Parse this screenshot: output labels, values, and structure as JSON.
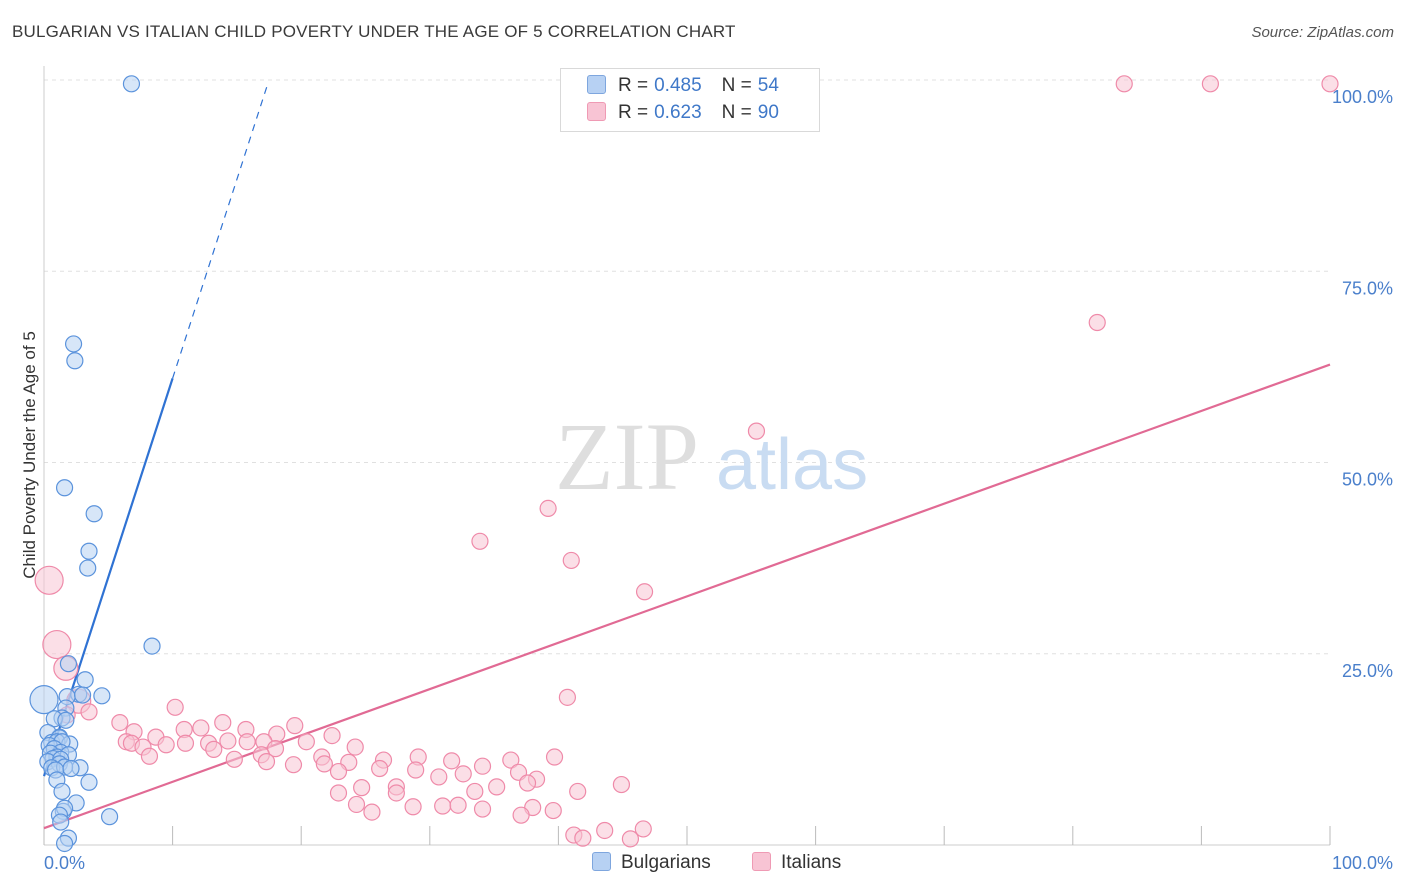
{
  "title": "BULGARIAN VS ITALIAN CHILD POVERTY UNDER THE AGE OF 5 CORRELATION CHART",
  "source": "Source: ZipAtlas.com",
  "watermark": {
    "zip": "ZIP",
    "atlas": "atlas"
  },
  "legend": {
    "rows": [
      {
        "r_label": "R =",
        "r_value": "0.485",
        "n_label": "N =",
        "n_value": "54",
        "fill": "#b7d1f3",
        "stroke": "#7ea6de"
      },
      {
        "r_label": "R =",
        "r_value": "0.623",
        "n_label": "N =",
        "n_value": "90",
        "fill": "#f8c4d4",
        "stroke": "#ef9ab4"
      }
    ]
  },
  "bottom_legend": {
    "bulgarians": "Bulgarians",
    "italians": "Italians"
  },
  "colors": {
    "blue_fill": "#b7d1f3",
    "blue_stroke": "#5b93dc",
    "blue_line": "#2f72d3",
    "pink_fill": "#f8c4d4",
    "pink_stroke": "#ef8aa9",
    "pink_line": "#e16a94",
    "tick_label": "#4a7fcb",
    "grid": "#e0e0e0"
  },
  "chart_data": {
    "type": "scatter",
    "title": "BULGARIAN VS ITALIAN CHILD POVERTY UNDER THE AGE OF 5 CORRELATION CHART",
    "xlabel": "",
    "ylabel": "Child Poverty Under the Age of 5",
    "xlim": [
      0,
      100
    ],
    "ylim": [
      0,
      100
    ],
    "x_tick_labels": [
      "0.0%",
      "100.0%"
    ],
    "y_ticks": [
      25,
      50,
      75,
      100
    ],
    "y_tick_labels": [
      "25.0%",
      "50.0%",
      "75.0%",
      "100.0%"
    ],
    "series": [
      {
        "name": "Bulgarians",
        "R": 0.485,
        "N": 54,
        "points": [
          [
            6.8,
            99.5
          ],
          [
            2.3,
            65.5
          ],
          [
            2.4,
            63.3
          ],
          [
            1.6,
            46.7
          ],
          [
            3.9,
            43.3
          ],
          [
            3.5,
            38.4
          ],
          [
            3.4,
            36.2
          ],
          [
            8.4,
            26.0
          ],
          [
            1.9,
            23.7
          ],
          [
            3.2,
            21.6
          ],
          [
            2.7,
            19.7
          ],
          [
            4.5,
            19.5
          ],
          [
            1.8,
            19.4
          ],
          [
            3.0,
            19.6
          ],
          [
            1.7,
            17.9
          ],
          [
            0.0,
            19.0
          ],
          [
            1.4,
            16.6
          ],
          [
            0.8,
            16.5
          ],
          [
            1.7,
            16.3
          ],
          [
            1.2,
            14.1
          ],
          [
            0.3,
            14.7
          ],
          [
            1.2,
            14.0
          ],
          [
            0.6,
            13.4
          ],
          [
            1.0,
            13.5
          ],
          [
            2.0,
            13.2
          ],
          [
            1.4,
            13.5
          ],
          [
            0.4,
            13.0
          ],
          [
            0.8,
            12.6
          ],
          [
            1.3,
            12.1
          ],
          [
            0.5,
            12.0
          ],
          [
            1.0,
            11.5
          ],
          [
            1.9,
            11.8
          ],
          [
            0.7,
            11.3
          ],
          [
            0.3,
            10.9
          ],
          [
            1.3,
            11.2
          ],
          [
            1.2,
            10.6
          ],
          [
            2.8,
            10.1
          ],
          [
            0.6,
            10.1
          ],
          [
            1.6,
            10.2
          ],
          [
            0.9,
            9.8
          ],
          [
            2.1,
            10.0
          ],
          [
            1.0,
            8.5
          ],
          [
            3.5,
            8.2
          ],
          [
            1.4,
            7.0
          ],
          [
            2.5,
            5.5
          ],
          [
            1.5,
            4.4
          ],
          [
            1.6,
            4.8
          ],
          [
            1.2,
            3.9
          ],
          [
            5.1,
            3.7
          ],
          [
            1.3,
            3.0
          ],
          [
            1.9,
            0.9
          ],
          [
            1.6,
            0.2
          ]
        ],
        "trend": {
          "x0": 0.0,
          "y0": 9.0,
          "x1": 10.0,
          "y1": 61.0,
          "dash_x1": 17.4,
          "dash_y1": 99.5
        }
      },
      {
        "name": "Italians",
        "R": 0.623,
        "N": 90,
        "points": [
          [
            84.0,
            99.5
          ],
          [
            90.7,
            99.5
          ],
          [
            100.0,
            99.5
          ],
          [
            81.9,
            68.3
          ],
          [
            55.4,
            54.1
          ],
          [
            39.2,
            44.0
          ],
          [
            33.9,
            39.7
          ],
          [
            41.0,
            37.2
          ],
          [
            46.7,
            33.1
          ],
          [
            0.4,
            34.6
          ],
          [
            1.0,
            26.2
          ],
          [
            1.7,
            23.1
          ],
          [
            40.7,
            19.3
          ],
          [
            2.7,
            18.8
          ],
          [
            10.2,
            18.0
          ],
          [
            3.5,
            17.4
          ],
          [
            1.8,
            17.0
          ],
          [
            5.9,
            16.0
          ],
          [
            13.9,
            16.0
          ],
          [
            19.5,
            15.6
          ],
          [
            10.9,
            15.1
          ],
          [
            12.2,
            15.3
          ],
          [
            15.7,
            15.1
          ],
          [
            7.0,
            14.8
          ],
          [
            22.4,
            14.3
          ],
          [
            18.1,
            14.5
          ],
          [
            6.4,
            13.5
          ],
          [
            8.7,
            14.1
          ],
          [
            11.0,
            13.3
          ],
          [
            12.8,
            13.3
          ],
          [
            14.3,
            13.6
          ],
          [
            15.8,
            13.5
          ],
          [
            9.5,
            13.1
          ],
          [
            6.8,
            13.3
          ],
          [
            7.7,
            12.8
          ],
          [
            17.1,
            13.5
          ],
          [
            13.2,
            12.5
          ],
          [
            20.4,
            13.5
          ],
          [
            18.0,
            12.6
          ],
          [
            24.2,
            12.8
          ],
          [
            16.9,
            11.8
          ],
          [
            21.6,
            11.5
          ],
          [
            8.2,
            11.6
          ],
          [
            14.8,
            11.2
          ],
          [
            17.3,
            10.9
          ],
          [
            29.1,
            11.5
          ],
          [
            31.7,
            11.0
          ],
          [
            26.4,
            11.1
          ],
          [
            23.7,
            10.8
          ],
          [
            36.3,
            11.1
          ],
          [
            39.7,
            11.5
          ],
          [
            21.8,
            10.6
          ],
          [
            19.4,
            10.5
          ],
          [
            34.1,
            10.3
          ],
          [
            22.9,
            9.6
          ],
          [
            26.1,
            10.0
          ],
          [
            28.9,
            9.8
          ],
          [
            30.7,
            8.9
          ],
          [
            32.6,
            9.3
          ],
          [
            36.9,
            9.5
          ],
          [
            38.3,
            8.6
          ],
          [
            24.7,
            7.5
          ],
          [
            27.4,
            7.6
          ],
          [
            37.6,
            8.1
          ],
          [
            35.2,
            7.6
          ],
          [
            27.4,
            6.8
          ],
          [
            33.5,
            7.0
          ],
          [
            41.5,
            7.0
          ],
          [
            44.9,
            7.9
          ],
          [
            22.9,
            6.8
          ],
          [
            24.3,
            5.3
          ],
          [
            28.7,
            5.0
          ],
          [
            31.0,
            5.1
          ],
          [
            25.5,
            4.3
          ],
          [
            32.2,
            5.2
          ],
          [
            34.1,
            4.7
          ],
          [
            38.0,
            4.9
          ],
          [
            39.6,
            4.5
          ],
          [
            37.1,
            3.9
          ],
          [
            46.6,
            2.1
          ],
          [
            43.6,
            1.9
          ],
          [
            41.2,
            1.3
          ],
          [
            41.9,
            0.9
          ],
          [
            45.6,
            0.8
          ]
        ],
        "trend": {
          "x0": 0.0,
          "y0": 2.2,
          "x1": 100.0,
          "y1": 62.8
        }
      }
    ]
  }
}
